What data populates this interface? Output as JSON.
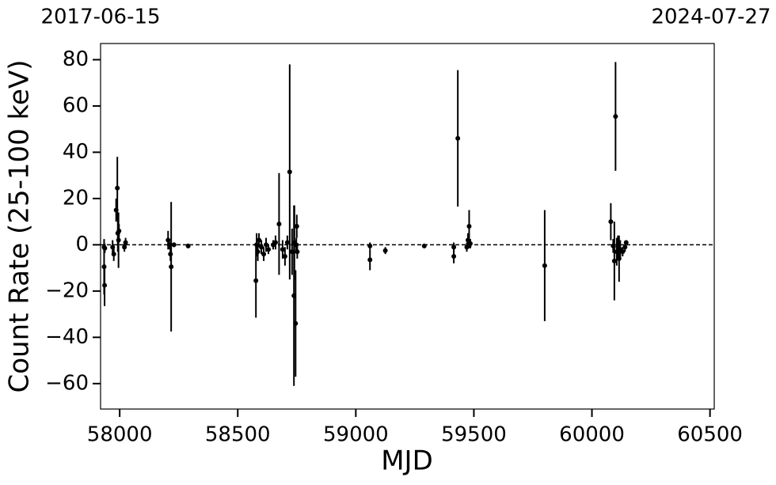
{
  "chart_data": {
    "type": "errorbar",
    "xlabel": "MJD",
    "ylabel": "Count Rate (25-100 keV)",
    "xlim": [
      57919,
      60518
    ],
    "ylim": [
      -71,
      87
    ],
    "xticks": [
      58000,
      58500,
      59000,
      59500,
      60000,
      60500
    ],
    "yticks": [
      {
        "value": -60,
        "label": "−60"
      },
      {
        "value": -40,
        "label": "−40"
      },
      {
        "value": -20,
        "label": "−20"
      },
      0,
      20,
      40,
      60,
      80
    ],
    "x2ticks": [
      {
        "value": 57919,
        "label": "2017-06-15"
      },
      {
        "value": 60518,
        "label": "2024-07-27"
      }
    ],
    "hline": 0,
    "color": "#000000",
    "series": [
      {
        "name": "Count Rate",
        "x": [
          57936,
          57934,
          57934,
          57937,
          57970,
          57975,
          57985,
          57990,
          57992,
          57997,
          57995,
          58025,
          58020,
          58205,
          58215,
          58218,
          58210,
          58230,
          58290,
          58577,
          58580,
          58585,
          58590,
          58600,
          58610,
          58620,
          58630,
          58650,
          58660,
          58675,
          58690,
          58700,
          58710,
          58720,
          58730,
          58738,
          58745,
          58750,
          58752,
          58748,
          58740,
          59060,
          59060,
          59125,
          59290,
          59415,
          59415,
          59432,
          59470,
          59475,
          59480,
          59485,
          59480,
          59800,
          60080,
          60090,
          60100,
          60095,
          60105,
          60110,
          60115,
          60120,
          60130,
          60140,
          60145
        ],
        "values": [
          -17.5,
          -9.5,
          -1,
          -1.5,
          -1,
          -4,
          15,
          24.5,
          5,
          6,
          2,
          1,
          -1,
          2,
          -4,
          -9.5,
          0,
          0,
          -0.5,
          -15.5,
          0,
          -3,
          2,
          -1,
          -4,
          0,
          -2,
          0,
          1,
          9,
          -2,
          -5,
          1,
          31.5,
          -3,
          -22,
          -34,
          8,
          -3,
          0,
          1,
          -0.5,
          -6.5,
          -2.5,
          -0.5,
          -1,
          -5,
          46,
          -1,
          2,
          8,
          0.5,
          -0.5,
          -9,
          10,
          -0.5,
          55.5,
          -7,
          -3,
          -1,
          -6,
          -2,
          -3,
          -1,
          1
        ],
        "errors": [
          9,
          12,
          3,
          2,
          3,
          3,
          5,
          13.5,
          8,
          3,
          12,
          2,
          2,
          4,
          3,
          28,
          2,
          1,
          1,
          16,
          5,
          4,
          3,
          3,
          3,
          3,
          2,
          2,
          3,
          22,
          4,
          4,
          3,
          46.5,
          10,
          39,
          23,
          5,
          3,
          3,
          16,
          1.5,
          4.5,
          1.5,
          1,
          2,
          3,
          29.5,
          2,
          3,
          7,
          2,
          1,
          24,
          8,
          3,
          23.5,
          17,
          6,
          5,
          10,
          4,
          2,
          2,
          1
        ]
      }
    ]
  }
}
